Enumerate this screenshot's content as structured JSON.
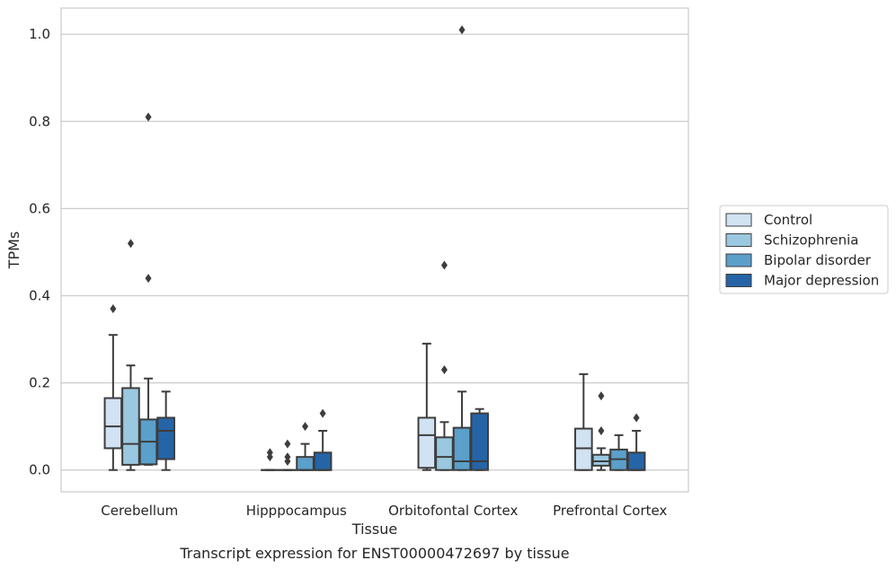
{
  "chart_data": {
    "type": "boxplot",
    "caption": "Transcript expression for ENST00000472697 by tissue",
    "xlabel": "Tissue",
    "ylabel": "TPMs",
    "ylim": [
      -0.05,
      1.06
    ],
    "yticks": [
      0.0,
      0.2,
      0.4,
      0.6,
      0.8,
      1.0
    ],
    "ytick_labels": [
      "0.0",
      "0.2",
      "0.4",
      "0.6",
      "0.8",
      "1.0"
    ],
    "grid": "horizontal",
    "legend_position": "right",
    "categories": [
      "Cerebellum",
      "Hipppocampus",
      "Orbitofontal Cortex",
      "Prefrontal Cortex"
    ],
    "series": [
      {
        "name": "Control",
        "color": "#d1e2f2",
        "boxes": [
          {
            "whislo": 0.0,
            "q1": 0.05,
            "med": 0.1,
            "q3": 0.165,
            "whishi": 0.31,
            "fliers": [
              0.37
            ]
          },
          {
            "whislo": 0.0,
            "q1": 0.0,
            "med": 0.0,
            "q3": 0.0,
            "whishi": 0.0,
            "fliers": [
              0.03,
              0.04
            ]
          },
          {
            "whislo": 0.0,
            "q1": 0.005,
            "med": 0.08,
            "q3": 0.12,
            "whishi": 0.29,
            "fliers": []
          },
          {
            "whislo": 0.0,
            "q1": 0.0,
            "med": 0.05,
            "q3": 0.095,
            "whishi": 0.22,
            "fliers": []
          }
        ]
      },
      {
        "name": "Schizophrenia",
        "color": "#9ac8e0",
        "boxes": [
          {
            "whislo": 0.0,
            "q1": 0.012,
            "med": 0.06,
            "q3": 0.188,
            "whishi": 0.24,
            "fliers": [
              0.52
            ]
          },
          {
            "whislo": 0.0,
            "q1": 0.0,
            "med": 0.0,
            "q3": 0.0,
            "whishi": 0.0,
            "fliers": [
              0.02,
              0.03,
              0.06
            ]
          },
          {
            "whislo": 0.0,
            "q1": 0.0,
            "med": 0.03,
            "q3": 0.075,
            "whishi": 0.11,
            "fliers": [
              0.23,
              0.47
            ]
          },
          {
            "whislo": 0.0,
            "q1": 0.01,
            "med": 0.02,
            "q3": 0.035,
            "whishi": 0.05,
            "fliers": [
              0.09,
              0.17
            ]
          }
        ]
      },
      {
        "name": "Bipolar disorder",
        "color": "#5b9fcb",
        "boxes": [
          {
            "whislo": 0.012,
            "q1": 0.013,
            "med": 0.065,
            "q3": 0.116,
            "whishi": 0.21,
            "fliers": [
              0.44,
              0.81
            ]
          },
          {
            "whislo": 0.0,
            "q1": 0.0,
            "med": 0.0,
            "q3": 0.03,
            "whishi": 0.06,
            "fliers": [
              0.1
            ]
          },
          {
            "whislo": 0.0,
            "q1": 0.0,
            "med": 0.02,
            "q3": 0.097,
            "whishi": 0.18,
            "fliers": [
              1.01
            ]
          },
          {
            "whislo": 0.0,
            "q1": 0.0,
            "med": 0.025,
            "q3": 0.047,
            "whishi": 0.08,
            "fliers": []
          }
        ]
      },
      {
        "name": "Major depression",
        "color": "#2564a6",
        "boxes": [
          {
            "whislo": 0.0,
            "q1": 0.025,
            "med": 0.09,
            "q3": 0.12,
            "whishi": 0.18,
            "fliers": []
          },
          {
            "whislo": 0.0,
            "q1": 0.0,
            "med": 0.0,
            "q3": 0.04,
            "whishi": 0.09,
            "fliers": [
              0.13
            ]
          },
          {
            "whislo": 0.0,
            "q1": 0.0,
            "med": 0.02,
            "q3": 0.13,
            "whishi": 0.14,
            "fliers": []
          },
          {
            "whislo": 0.0,
            "q1": 0.0,
            "med": 0.0,
            "q3": 0.04,
            "whishi": 0.09,
            "fliers": [
              0.12
            ]
          }
        ]
      }
    ]
  }
}
